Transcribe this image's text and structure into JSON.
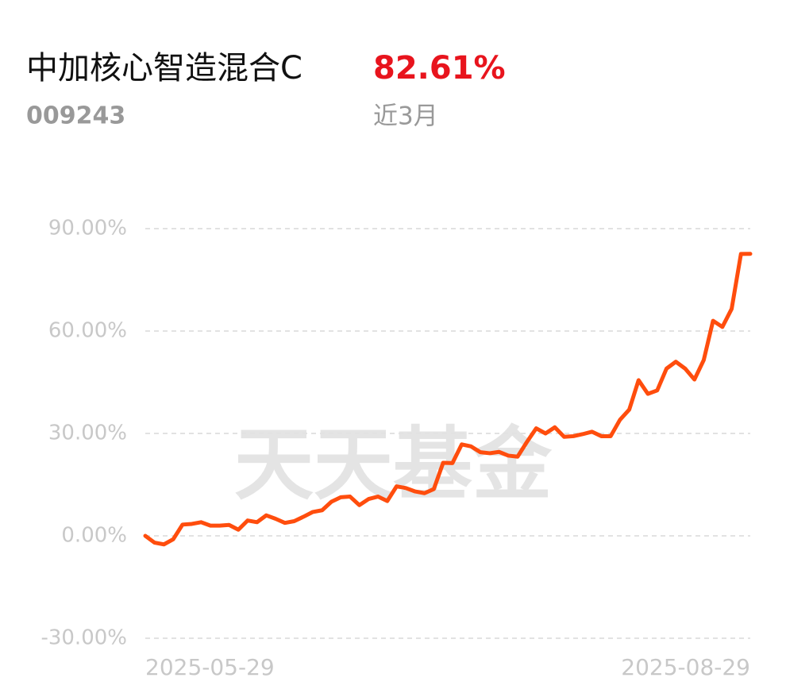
{
  "header": {
    "title": "中加核心智造混合C",
    "return": "82.61%",
    "code": "009243",
    "period": "近3月"
  },
  "watermark": "天天基金",
  "chart_data": {
    "type": "line",
    "categories": [
      "2025-05-29",
      null,
      null,
      null,
      null,
      null,
      null,
      null,
      null,
      null,
      null,
      null,
      null,
      null,
      null,
      null,
      null,
      null,
      null,
      null,
      null,
      null,
      null,
      null,
      null,
      null,
      null,
      null,
      null,
      null,
      null,
      null,
      null,
      null,
      null,
      null,
      null,
      null,
      null,
      null,
      null,
      null,
      null,
      null,
      null,
      null,
      null,
      null,
      null,
      null,
      null,
      null,
      null,
      null,
      null,
      null,
      null,
      null,
      null,
      null,
      null,
      null,
      null,
      null,
      null,
      "2025-08-29"
    ],
    "series": [
      {
        "color": "#ff4d0d",
        "values": [
          0,
          -2,
          -2.5,
          -1,
          3.3,
          3.5,
          4,
          3,
          3,
          3.2,
          1.8,
          4.5,
          4,
          6,
          5,
          3.8,
          4.3,
          5.6,
          7,
          7.5,
          10,
          11.3,
          11.5,
          9,
          10.8,
          11.5,
          10.2,
          14.5,
          14,
          13,
          12.5,
          13.7,
          21.4,
          21.3,
          26.8,
          26.2,
          24.5,
          24.2,
          24.6,
          23.5,
          23.2,
          27.5,
          31.5,
          30,
          31.8,
          29,
          29.2,
          29.8,
          30.5,
          29.2,
          29.2,
          34,
          37,
          45.6,
          41.6,
          42.6,
          49,
          51,
          49,
          45.8,
          51.5,
          63,
          61.2,
          66.5,
          82.6,
          82.61
        ]
      }
    ],
    "ylim": [
      -30,
      90
    ],
    "yticks": [
      {
        "value": -30,
        "label": "-30.00%"
      },
      {
        "value": 0,
        "label": "0.00%"
      },
      {
        "value": 30,
        "label": "30.00%"
      },
      {
        "value": 60,
        "label": "60.00%"
      },
      {
        "value": 90,
        "label": "90.00%"
      }
    ],
    "grid": true
  }
}
